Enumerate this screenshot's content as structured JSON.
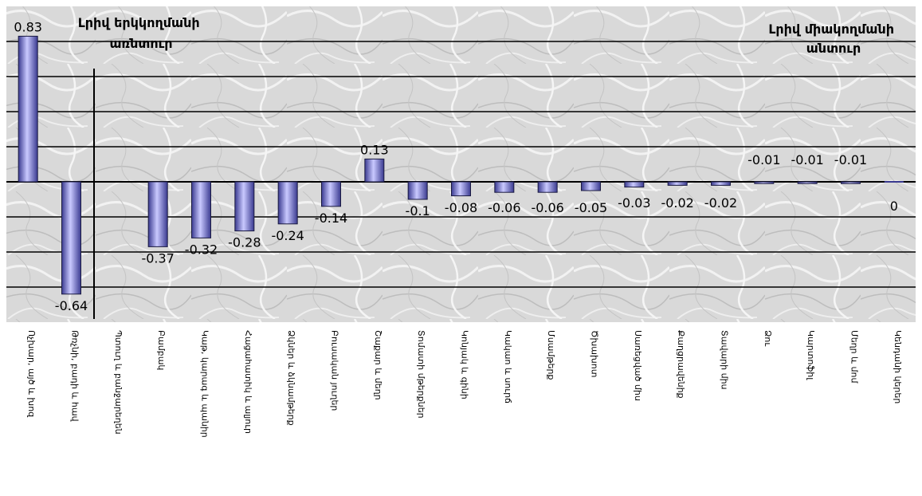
{
  "chart_data": {
    "type": "bar",
    "title": "",
    "xlabel": "",
    "ylabel": "",
    "ylim": [
      -0.8,
      1.0
    ],
    "grid": true,
    "legend": "none",
    "colors": {
      "bar_light": "#c9c9ff",
      "bar_mid": "#8c8ce6",
      "bar_dark": "#3a3a90",
      "bar_border": "#1a1a40",
      "gridline": "#000000",
      "marble": "#d7d7d7"
    },
    "annotations": [
      {
        "lines": [
          "Լրիվ երկկողմանի",
          "առնտուր"
        ]
      },
      {
        "lines": [
          "Լրիվ միակողմանի",
          "անտուր"
        ]
      }
    ],
    "categories": [
      "Ոչխար, այծ և խոզ",
      "Թռչնի, բադի և հավ",
      "Պտուղ և բանջարեղեն",
      "Բամբակ",
      "Կաթ, կարագ և պանիր",
      "Հացահատիկ և ալյուր",
      "Ձկներ և ձկնամթերք",
      "Բուսական յուղեր",
      "Շաքար և մեղր",
      "Տոմատի մթերքներ",
      "Կոնյակ և գինի",
      "Կակաո և սուրճ",
      "Մսամթերք",
      "Ծխախոտ",
      "Սառեցված միս",
      "Քաղցրավենիք",
      "Տավարի միս",
      "Ձու",
      "Կարտոֆիլ",
      "Մեղր և մոմ",
      "Կենդանի կերեր"
    ],
    "values": [
      0.83,
      -0.64,
      0,
      -0.37,
      -0.32,
      -0.28,
      -0.24,
      -0.14,
      0.13,
      -0.1,
      -0.08,
      -0.06,
      -0.06,
      -0.05,
      -0.03,
      -0.02,
      -0.02,
      -0.01,
      -0.01,
      -0.01,
      0
    ],
    "data_labels": [
      "0.83",
      "-0.64",
      "",
      "-0.37",
      "-0.32",
      "-0.28",
      "-0.24",
      "-0.14",
      "0.13",
      "-0.1",
      "-0.08",
      "-0.06",
      "-0.06",
      "-0.05",
      "-0.03",
      "-0.02",
      "-0.02",
      "-0.01",
      "-0.01",
      "-0.01",
      "0"
    ]
  }
}
